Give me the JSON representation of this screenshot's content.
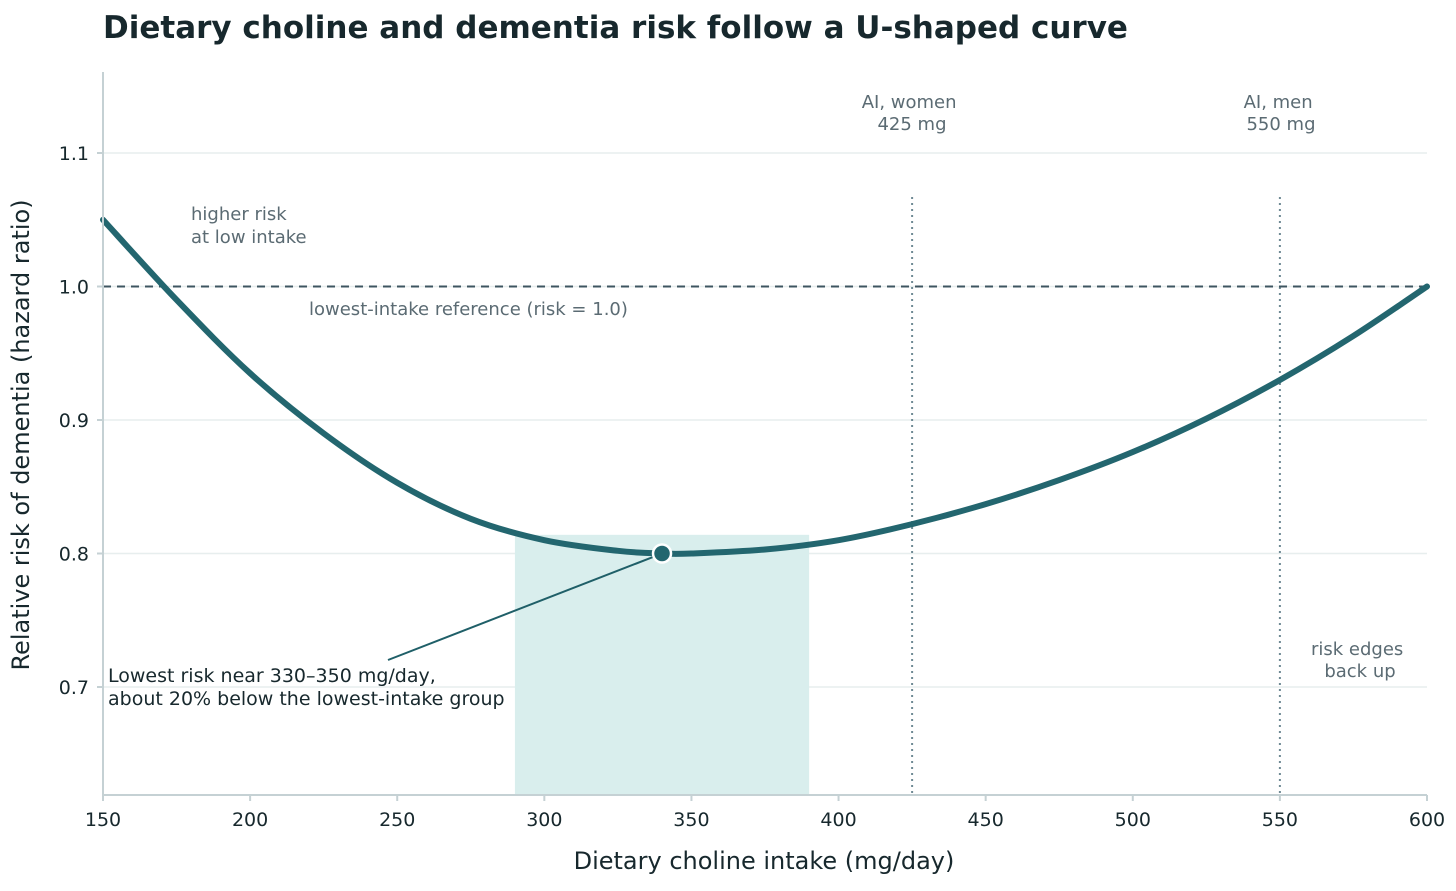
{
  "title": "Dietary choline and dementia risk follow a U-shaped curve",
  "chart_data": {
    "type": "line",
    "title": "Dietary choline and dementia risk follow a U-shaped curve",
    "xlabel": "Dietary choline intake (mg/day)",
    "ylabel": "Relative risk of dementia (hazard ratio)",
    "xlim": [
      150,
      600
    ],
    "ylim": [
      0.62,
      1.16
    ],
    "xticks": [
      150,
      200,
      250,
      300,
      350,
      400,
      450,
      500,
      550,
      600
    ],
    "yticks": [
      0.7,
      0.8,
      0.9,
      1.0,
      1.1
    ],
    "yticklabels": [
      "0.7",
      "0.8",
      "0.9",
      "1.0",
      "1.1"
    ],
    "grid": "horizontal",
    "series": [
      {
        "x": [
          150,
          175,
          200,
          225,
          250,
          275,
          300,
          325,
          340,
          350,
          375,
          400,
          425,
          450,
          475,
          500,
          525,
          550,
          575,
          600
        ],
        "y": [
          1.05,
          0.99,
          0.935,
          0.89,
          0.853,
          0.826,
          0.81,
          0.802,
          0.8,
          0.8,
          0.803,
          0.81,
          0.822,
          0.837,
          0.855,
          0.876,
          0.901,
          0.93,
          0.963,
          1.0
        ],
        "color": "#23666f"
      }
    ],
    "minimum_point": {
      "x": 340,
      "y": 0.8
    },
    "optimal_band": {
      "x": [
        290,
        390
      ],
      "color": "#d9eeed"
    },
    "reference_line": {
      "y": 1.0,
      "label": "lowest-intake reference (risk = 1.0)"
    },
    "vertical_lines": [
      {
        "x": 425,
        "label": [
          "AI, women",
          "425 mg"
        ]
      },
      {
        "x": 550,
        "label": [
          "AI, men",
          "550 mg"
        ]
      }
    ],
    "annotations": {
      "high_risk": [
        "higher risk",
        "at low intake"
      ],
      "minimum": [
        "Lowest risk near 330–350 mg/day,",
        "about 20% below the lowest-intake group"
      ],
      "edges_up": [
        "risk edges",
        "back up"
      ]
    },
    "colors": {
      "curve": "#23666f",
      "band": "#d9eeed",
      "reference": "#3e5560",
      "annotation": "#5b6b73",
      "axis": "#c5d1d4",
      "grid": "#e7eeee",
      "dark_text": "#17282d"
    }
  }
}
